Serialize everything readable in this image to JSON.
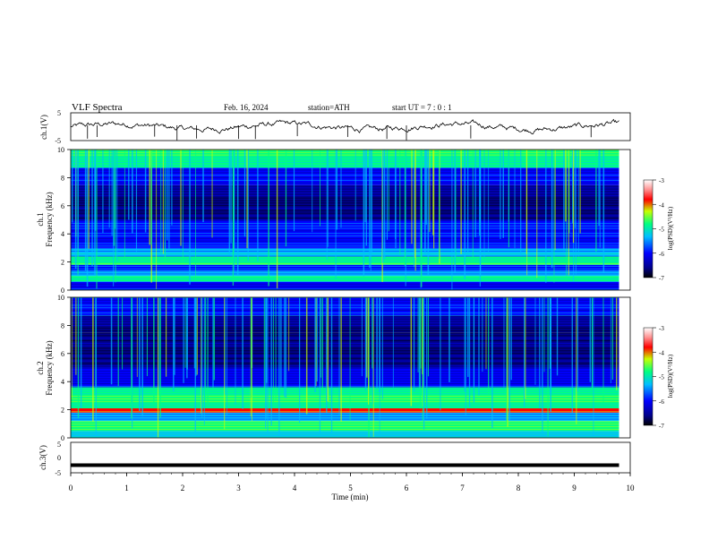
{
  "header": {
    "title": "VLF  Spectra",
    "date": "Feb. 16, 2024",
    "station": "station=ATH",
    "start_ut": "start  UT  =   7  : 0   : 1"
  },
  "colors": {
    "spectrogram_palette": [
      "#000000",
      "#00008b",
      "#0000ff",
      "#00bfff",
      "#00ff80",
      "#c8ff00",
      "#ff0000",
      "#ffffff"
    ],
    "trace": "#000000"
  },
  "chart_data": [
    {
      "type": "line",
      "name": "ch1-waveform",
      "ylabel": "ch.1(V)",
      "yticks": [
        "5",
        "-5"
      ],
      "ylim": [
        -5,
        5
      ],
      "xlim": [
        0,
        10
      ],
      "description_values": {
        "mean_level": 0,
        "spike_times_min": [
          0.3,
          0.47,
          1.5,
          1.9,
          2.25,
          3.0,
          3.3,
          4.05,
          4.95,
          5.65,
          6.0,
          7.15,
          9.3
        ]
      }
    },
    {
      "type": "heatmap",
      "name": "ch1-spectrogram",
      "ylabel_top": "ch.1",
      "ylabel": "Frequency  (kHz)",
      "yticks": [
        "0",
        "2",
        "4",
        "6",
        "8",
        "10"
      ],
      "ylim": [
        0,
        10
      ],
      "xlim": [
        0,
        9.8
      ],
      "bands_khz": [
        {
          "from": 0,
          "to": 0.6,
          "level": 2
        },
        {
          "from": 0.6,
          "to": 1.0,
          "level": 4
        },
        {
          "from": 1.0,
          "to": 1.4,
          "level": 3
        },
        {
          "from": 1.4,
          "to": 1.8,
          "level": 2
        },
        {
          "from": 1.8,
          "to": 2.4,
          "level": 4
        },
        {
          "from": 2.4,
          "to": 3.0,
          "level": 3
        },
        {
          "from": 3.0,
          "to": 5.0,
          "level": 2
        },
        {
          "from": 5.0,
          "to": 7.5,
          "level": 1
        },
        {
          "from": 7.5,
          "to": 8.7,
          "level": 2
        },
        {
          "from": 8.7,
          "to": 10,
          "level": 4
        }
      ],
      "colorbar": {
        "label": "log(PSD)(V²/Hz)",
        "ticks": [
          "-3",
          "-4",
          "-5",
          "-6",
          "-7"
        ],
        "range": [
          -7,
          -3
        ]
      }
    },
    {
      "type": "heatmap",
      "name": "ch2-spectrogram",
      "ylabel_top": "ch.2",
      "ylabel": "Frequency  (kHz)",
      "yticks": [
        "0",
        "2",
        "4",
        "6",
        "8",
        "10"
      ],
      "ylim": [
        0,
        10
      ],
      "xlim": [
        0,
        9.8
      ],
      "bands_khz": [
        {
          "from": 0,
          "to": 0.5,
          "level": 3
        },
        {
          "from": 0.5,
          "to": 1.2,
          "level": 4
        },
        {
          "from": 1.2,
          "to": 1.8,
          "level": 3
        },
        {
          "from": 1.8,
          "to": 2.1,
          "level": 6
        },
        {
          "from": 2.1,
          "to": 3.6,
          "level": 4
        },
        {
          "from": 3.6,
          "to": 5.0,
          "level": 2
        },
        {
          "from": 5.0,
          "to": 7.5,
          "level": 1
        },
        {
          "from": 7.5,
          "to": 8.7,
          "level": 1
        },
        {
          "from": 8.7,
          "to": 10,
          "level": 2
        }
      ],
      "colorbar": {
        "label": "log(PSD)(V²/Hz)",
        "ticks": [
          "-3",
          "-4",
          "-5",
          "-6",
          "-7"
        ],
        "range": [
          -7,
          -3
        ]
      }
    },
    {
      "type": "line",
      "name": "ch3-waveform",
      "ylabel": "ch.3(V)",
      "yticks": [
        "5",
        "0",
        "-5"
      ],
      "ylim": [
        -5,
        5
      ],
      "xlim": [
        0,
        10
      ],
      "constant_value": -2.5
    }
  ],
  "xaxis": {
    "label": "Time  (min)",
    "ticks": [
      "0",
      "1",
      "2",
      "3",
      "4",
      "5",
      "6",
      "7",
      "8",
      "9",
      "10"
    ],
    "range": [
      0,
      10
    ]
  }
}
